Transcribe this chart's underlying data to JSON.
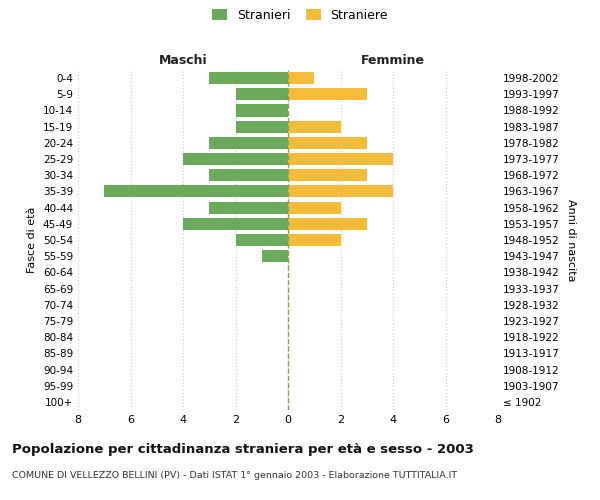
{
  "age_groups": [
    "100+",
    "95-99",
    "90-94",
    "85-89",
    "80-84",
    "75-79",
    "70-74",
    "65-69",
    "60-64",
    "55-59",
    "50-54",
    "45-49",
    "40-44",
    "35-39",
    "30-34",
    "25-29",
    "20-24",
    "15-19",
    "10-14",
    "5-9",
    "0-4"
  ],
  "birth_years": [
    "≤ 1902",
    "1903-1907",
    "1908-1912",
    "1913-1917",
    "1918-1922",
    "1923-1927",
    "1928-1932",
    "1933-1937",
    "1938-1942",
    "1943-1947",
    "1948-1952",
    "1953-1957",
    "1958-1962",
    "1963-1967",
    "1968-1972",
    "1973-1977",
    "1978-1982",
    "1983-1987",
    "1988-1992",
    "1993-1997",
    "1998-2002"
  ],
  "maschi": [
    0,
    0,
    0,
    0,
    0,
    0,
    0,
    0,
    0,
    1,
    2,
    4,
    3,
    7,
    3,
    4,
    3,
    2,
    2,
    2,
    3
  ],
  "femmine": [
    0,
    0,
    0,
    0,
    0,
    0,
    0,
    0,
    0,
    0,
    2,
    3,
    2,
    4,
    3,
    4,
    3,
    2,
    0,
    3,
    1
  ],
  "male_color": "#6aaa5a",
  "female_color": "#f5bc3a",
  "title_main": "Popolazione per cittadinanza straniera per età e sesso - 2003",
  "title_sub": "COMUNE DI VELLEZZO BELLINI (PV) - Dati ISTAT 1° gennaio 2003 - Elaborazione TUTTITALIA.IT",
  "ylabel_left": "Fasce di età",
  "ylabel_right": "Anni di nascita",
  "header_maschi": "Maschi",
  "header_femmine": "Femmine",
  "legend_male": "Stranieri",
  "legend_female": "Straniere",
  "xlim": 8,
  "background_color": "#ffffff",
  "grid_color": "#d0d0d0",
  "centerline_color": "#999955"
}
